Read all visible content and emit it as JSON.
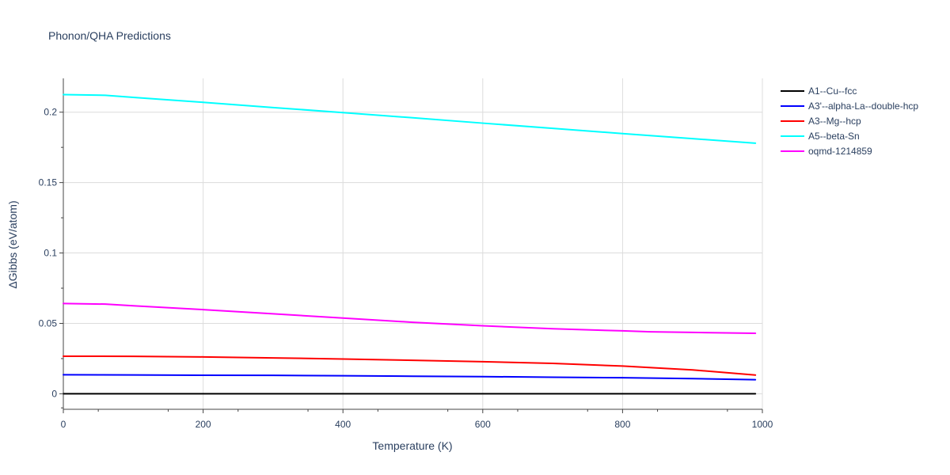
{
  "chart_data": {
    "type": "line",
    "title": "Phonon/QHA Predictions",
    "xlabel": "Temperature (K)",
    "ylabel": "ΔGibbs (eV/atom)",
    "xlim": [
      0,
      1000
    ],
    "ylim": [
      -0.011,
      0.224
    ],
    "x_ticks": [
      0,
      200,
      400,
      600,
      800,
      1000
    ],
    "x_tick_labels": [
      "0",
      "200",
      "400",
      "600",
      "800",
      "1000"
    ],
    "y_ticks": [
      0,
      0.05,
      0.1,
      0.15,
      0.2
    ],
    "y_tick_labels": [
      "0",
      "0.05",
      "0.1",
      "0.15",
      "0.2"
    ],
    "grid": true,
    "legend_position": "top-right outside",
    "series": [
      {
        "name": "A1--Cu--fcc",
        "color": "#000000",
        "x": [
          0,
          100,
          200,
          300,
          400,
          500,
          600,
          700,
          800,
          900,
          990
        ],
        "y": [
          0,
          0,
          0,
          0,
          0,
          0,
          0,
          0,
          0,
          0,
          0
        ]
      },
      {
        "name": "A3'--alpha-La--double-hcp",
        "color": "#0000ff",
        "x": [
          0,
          100,
          200,
          300,
          400,
          500,
          600,
          700,
          800,
          900,
          990
        ],
        "y": [
          0.0135,
          0.0134,
          0.0132,
          0.0131,
          0.0128,
          0.0125,
          0.0122,
          0.0118,
          0.0114,
          0.0108,
          0.01
        ]
      },
      {
        "name": "A3--Mg--hcp",
        "color": "#ff0000",
        "x": [
          0,
          100,
          200,
          300,
          400,
          500,
          600,
          700,
          800,
          900,
          990
        ],
        "y": [
          0.0267,
          0.0266,
          0.0262,
          0.0255,
          0.0247,
          0.0238,
          0.0228,
          0.0216,
          0.0197,
          0.017,
          0.0133
        ]
      },
      {
        "name": "A5--beta-Sn",
        "color": "#00ffff",
        "x": [
          0,
          60,
          100,
          200,
          300,
          400,
          500,
          600,
          700,
          800,
          900,
          990
        ],
        "y": [
          0.2125,
          0.212,
          0.2105,
          0.207,
          0.2033,
          0.1997,
          0.196,
          0.1922,
          0.1885,
          0.1848,
          0.1812,
          0.178
        ]
      },
      {
        "name": "oqmd-1214859",
        "color": "#ff00ff",
        "x": [
          0,
          60,
          100,
          200,
          300,
          400,
          500,
          600,
          700,
          800,
          840,
          900,
          990
        ],
        "y": [
          0.0641,
          0.0637,
          0.0625,
          0.0598,
          0.0568,
          0.0538,
          0.0508,
          0.0483,
          0.0462,
          0.0447,
          0.044,
          0.0436,
          0.043
        ]
      }
    ]
  }
}
